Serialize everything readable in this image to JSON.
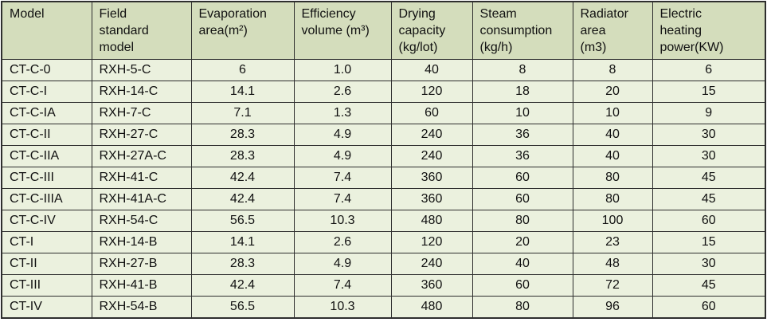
{
  "chart_data": {
    "type": "table",
    "title": "",
    "columns": [
      "Model",
      "Field standard model",
      "Evaporation area(m²)",
      "Efficiency volume (m³)",
      "Drying capacity (kg/lot)",
      "Steam consumption (kg/h)",
      "Radiator area (m3)",
      "Electric heating power(KW)"
    ],
    "rows": [
      [
        "CT-C-0",
        "RXH-5-C",
        "6",
        "1.0",
        "40",
        "8",
        "8",
        "6"
      ],
      [
        "CT-C-I",
        "RXH-14-C",
        "14.1",
        "2.6",
        "120",
        "18",
        "20",
        "15"
      ],
      [
        "CT-C-IA",
        "RXH-7-C",
        "7.1",
        "1.3",
        "60",
        "10",
        "10",
        "9"
      ],
      [
        "CT-C-II",
        "RXH-27-C",
        "28.3",
        "4.9",
        "240",
        "36",
        "40",
        "30"
      ],
      [
        "CT-C-IIA",
        "RXH-27A-C",
        "28.3",
        "4.9",
        "240",
        "36",
        "40",
        "30"
      ],
      [
        "CT-C-III",
        "RXH-41-C",
        "42.4",
        "7.4",
        "360",
        "60",
        "80",
        "45"
      ],
      [
        "CT-C-IIIA",
        "RXH-41A-C",
        "42.4",
        "7.4",
        "360",
        "60",
        "80",
        "45"
      ],
      [
        "CT-C-IV",
        "RXH-54-C",
        "56.5",
        "10.3",
        "480",
        "80",
        "100",
        "60"
      ],
      [
        "CT-I",
        "RXH-14-B",
        "14.1",
        "2.6",
        "120",
        "20",
        "23",
        "15"
      ],
      [
        "CT-II",
        "RXH-27-B",
        "28.3",
        "4.9",
        "240",
        "40",
        "48",
        "30"
      ],
      [
        "CT-III",
        "RXH-41-B",
        "42.4",
        "7.4",
        "360",
        "60",
        "72",
        "45"
      ],
      [
        "CT-IV",
        "RXH-54-B",
        "56.5",
        "10.3",
        "480",
        "80",
        "96",
        "60"
      ]
    ]
  },
  "header_display_lines": [
    [
      "Model"
    ],
    [
      "Field",
      "standard",
      "model"
    ],
    [
      "Evaporation",
      "area(m²)"
    ],
    [
      "Efficiency",
      "volume (m³)"
    ],
    [
      "Drying",
      "capacity",
      "(kg/lot)"
    ],
    [
      "Steam",
      "consumption",
      "(kg/h)"
    ],
    [
      "Radiator",
      "area",
      "(m3)"
    ],
    [
      "Electric",
      "heating",
      "power(KW)"
    ]
  ],
  "colors": {
    "header_bg": "#d4ddbc",
    "row_bg": "#ebf1de",
    "border": "#2e2e2e",
    "text": "#111111"
  }
}
